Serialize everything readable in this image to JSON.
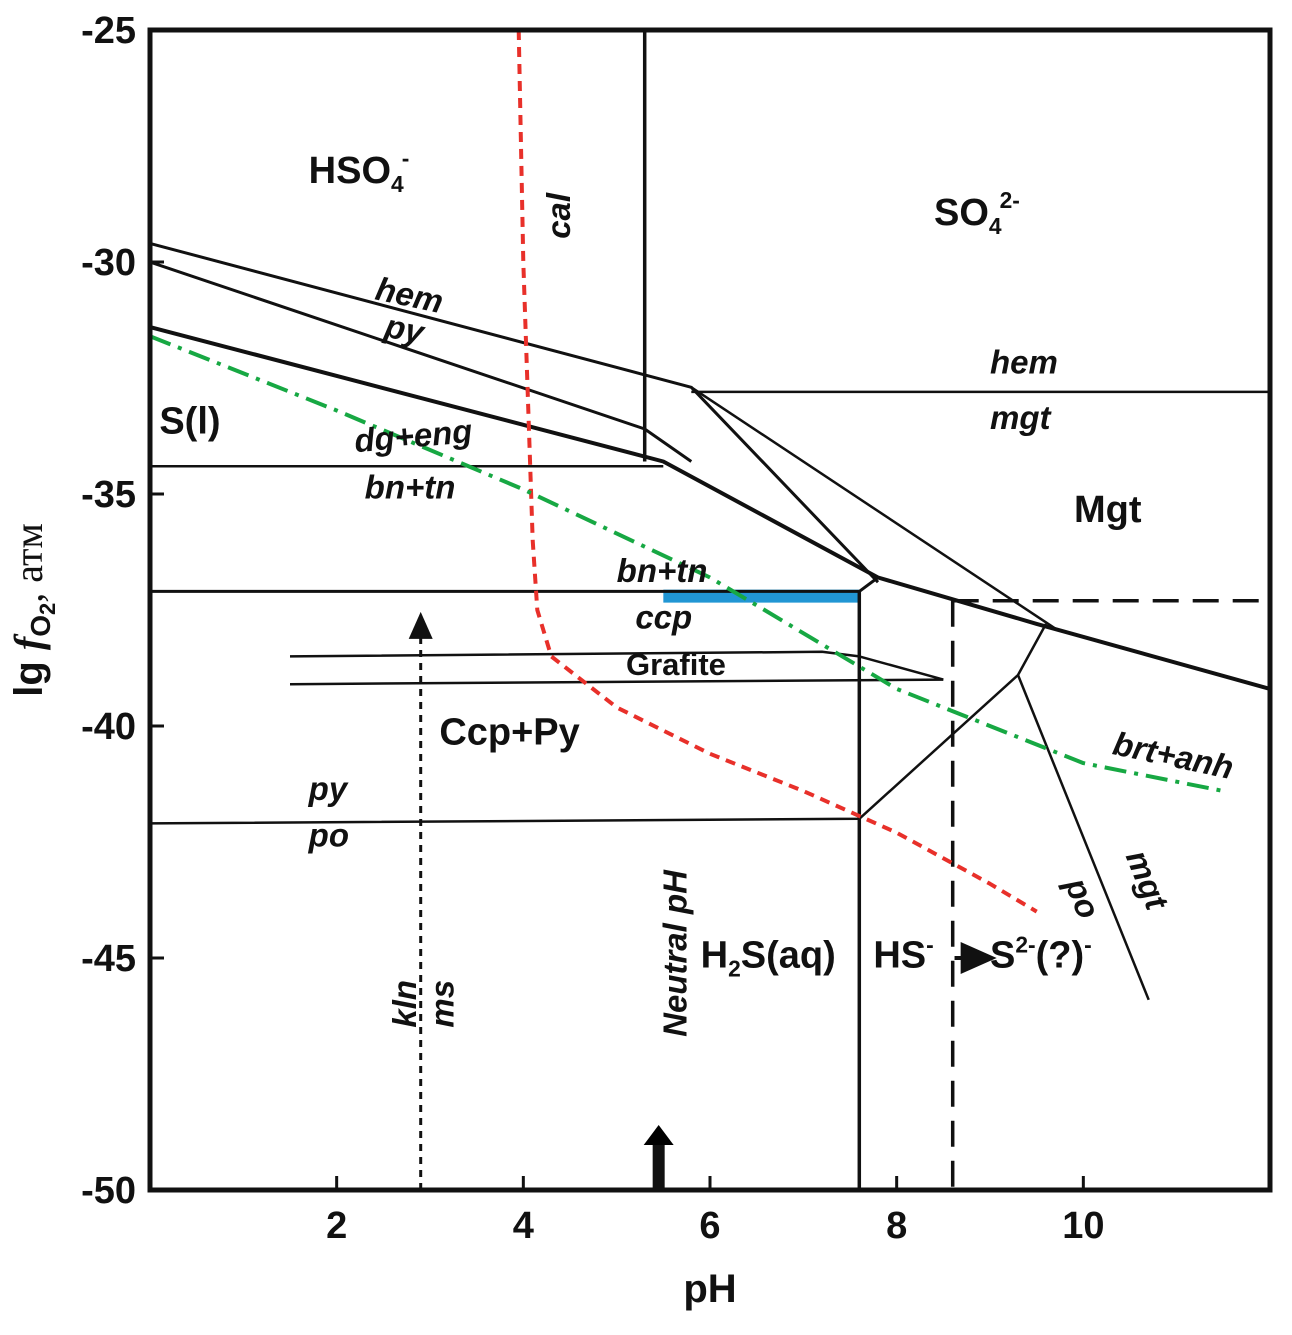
{
  "chart_data": {
    "type": "line",
    "title": "",
    "xlabel": "pH",
    "ylabel": "lg f_O2, atm",
    "ylabel_parts": [
      "lg ",
      "f",
      "O",
      "2",
      ", атм"
    ],
    "xlim": [
      0,
      12
    ],
    "ylim": [
      -50,
      -25
    ],
    "x_ticks": [
      {
        "value": 2,
        "label": "2"
      },
      {
        "value": 4,
        "label": "4"
      },
      {
        "value": 6,
        "label": "6"
      },
      {
        "value": 8,
        "label": "8"
      },
      {
        "value": 10,
        "label": "10"
      }
    ],
    "y_ticks": [
      {
        "value": -25,
        "label": "-25"
      },
      {
        "value": -30,
        "label": "-30"
      },
      {
        "value": -35,
        "label": "-35"
      },
      {
        "value": -40,
        "label": "-40"
      },
      {
        "value": -45,
        "label": "-45"
      },
      {
        "value": -50,
        "label": "-50"
      }
    ],
    "colors": {
      "axes": "#111111",
      "cal_line": "#e8302a",
      "brt_anh_line": "#17a843",
      "highlight": "#2196d4"
    },
    "lines": [
      {
        "id": "hem-py-upper",
        "style": "solid",
        "width": 3,
        "points": [
          [
            0,
            -29.6
          ],
          [
            5.8,
            -32.7
          ],
          [
            7.8,
            -36.9
          ]
        ]
      },
      {
        "id": "hem-py-lower",
        "style": "solid",
        "width": 3,
        "points": [
          [
            0,
            -30.0
          ],
          [
            5.3,
            -33.6
          ],
          [
            5.8,
            -34.3
          ]
        ]
      },
      {
        "id": "dg-eng",
        "style": "solid",
        "width": 4,
        "points": [
          [
            0,
            -31.4
          ],
          [
            5.5,
            -34.3
          ],
          [
            7.8,
            -36.8
          ],
          [
            9.5,
            -37.8
          ],
          [
            12,
            -39.2
          ]
        ]
      },
      {
        "id": "sulfate-boundary",
        "style": "solid",
        "width": 3.5,
        "points": [
          [
            5.3,
            -25
          ],
          [
            5.3,
            -34.3
          ]
        ]
      },
      {
        "id": "hem-mgt",
        "style": "solid",
        "width": 2.5,
        "points": [
          [
            5.8,
            -32.8
          ],
          [
            12,
            -32.8
          ]
        ]
      },
      {
        "id": "mgt-diagonal",
        "style": "solid",
        "width": 2.5,
        "points": [
          [
            5.8,
            -32.7
          ],
          [
            9.7,
            -37.9
          ]
        ]
      },
      {
        "id": "bn-tn-horizontal",
        "style": "solid",
        "width": 2.5,
        "points": [
          [
            0,
            -34.4
          ],
          [
            5.5,
            -34.4
          ]
        ]
      },
      {
        "id": "bn-tn-ccp",
        "style": "solid",
        "width": 3,
        "points": [
          [
            0,
            -37.1
          ],
          [
            7.6,
            -37.1
          ],
          [
            7.8,
            -36.8
          ]
        ]
      },
      {
        "id": "h2s-boundary",
        "style": "solid",
        "width": 3.5,
        "points": [
          [
            7.6,
            -37.1
          ],
          [
            7.6,
            -50
          ]
        ]
      },
      {
        "id": "grafite-upper",
        "style": "solid",
        "width": 2.5,
        "points": [
          [
            1.5,
            -38.5
          ],
          [
            7.2,
            -38.4
          ],
          [
            7.6,
            -38.5
          ],
          [
            8.5,
            -39.0
          ]
        ]
      },
      {
        "id": "grafite-lower",
        "style": "solid",
        "width": 2.5,
        "points": [
          [
            1.5,
            -39.1
          ],
          [
            8.5,
            -39.0
          ]
        ]
      },
      {
        "id": "py-po",
        "style": "solid",
        "width": 2.5,
        "points": [
          [
            0,
            -42.1
          ],
          [
            7.6,
            -42.0
          ],
          [
            9.3,
            -38.9
          ],
          [
            9.6,
            -37.8
          ]
        ]
      },
      {
        "id": "mgt-po",
        "style": "solid",
        "width": 2.5,
        "points": [
          [
            9.3,
            -38.9
          ],
          [
            10.7,
            -45.9
          ]
        ]
      },
      {
        "id": "hs-s2-dashed",
        "style": "dashed",
        "width": 3.5,
        "points": [
          [
            8.6,
            -37.3
          ],
          [
            8.6,
            -50
          ]
        ]
      },
      {
        "id": "mgt-dashed",
        "style": "dashed",
        "width": 3.5,
        "points": [
          [
            8.6,
            -37.3
          ],
          [
            12,
            -37.3
          ]
        ]
      },
      {
        "id": "kln-ms",
        "style": "dotted",
        "width": 3,
        "arrow": true,
        "points": [
          [
            2.9,
            -50
          ],
          [
            2.9,
            -37.8
          ]
        ]
      },
      {
        "id": "cal",
        "style": "red-dashed",
        "width": 4,
        "points": [
          [
            3.95,
            -25
          ],
          [
            4.0,
            -30
          ],
          [
            4.05,
            -33
          ],
          [
            4.1,
            -36
          ],
          [
            4.15,
            -37.5
          ],
          [
            4.3,
            -38.5
          ],
          [
            5.0,
            -39.6
          ],
          [
            6.0,
            -40.6
          ],
          [
            7.0,
            -41.4
          ],
          [
            8.0,
            -42.3
          ],
          [
            9.0,
            -43.4
          ],
          [
            9.5,
            -44.0
          ]
        ]
      },
      {
        "id": "brt-anh",
        "style": "green-dashdot",
        "width": 4,
        "points": [
          [
            0,
            -31.6
          ],
          [
            2,
            -33.2
          ],
          [
            4,
            -34.9
          ],
          [
            6,
            -36.8
          ],
          [
            8,
            -39.2
          ],
          [
            10,
            -40.8
          ],
          [
            11.5,
            -41.4
          ]
        ]
      }
    ],
    "highlight_segment": {
      "id": "bn-tn-ccp-highlight",
      "x": [
        5.5,
        7.6
      ],
      "y": -37.2
    },
    "neutral_ph_arrow": {
      "x": 5.45,
      "y_from": -50,
      "y_to": -48.6
    },
    "annotations": [
      {
        "id": "hso4",
        "text": "HSO",
        "sub": "4",
        "sup": "-",
        "x": 1.7,
        "y": -28.3,
        "cls": "field"
      },
      {
        "id": "so4",
        "text": "SO",
        "sub": "4",
        "sup": "2-",
        "x": 8.4,
        "y": -29.2,
        "cls": "field"
      },
      {
        "id": "cal-label",
        "text": "cal",
        "x": 4.5,
        "y": -29.5,
        "cls": "bnd",
        "rotate": -90
      },
      {
        "id": "hem-label-1",
        "text": "hem",
        "x": 2.4,
        "y": -30.8,
        "cls": "bnd",
        "rotate": 12
      },
      {
        "id": "py-label-1",
        "text": "py",
        "x": 2.5,
        "y": -31.6,
        "cls": "bnd",
        "rotate": 12
      },
      {
        "id": "hem-label-2",
        "text": "hem",
        "x": 9.0,
        "y": -32.4,
        "cls": "bnd"
      },
      {
        "id": "mgt-label-1",
        "text": "mgt",
        "x": 9.0,
        "y": -33.6,
        "cls": "bnd"
      },
      {
        "id": "s-l",
        "text": "S(l)",
        "x": 0.1,
        "y": -33.7,
        "cls": "field"
      },
      {
        "id": "dg-eng-label",
        "text": "dg+eng",
        "x": 2.2,
        "y": -34.1,
        "cls": "bnd",
        "rotate": -5
      },
      {
        "id": "bn-tn-label-1",
        "text": "bn+tn",
        "x": 2.3,
        "y": -35.1,
        "cls": "bnd"
      },
      {
        "id": "mgt-field",
        "text": "Mgt",
        "x": 9.9,
        "y": -35.6,
        "cls": "field"
      },
      {
        "id": "bn-tn-label-2",
        "text": "bn+tn",
        "x": 5.0,
        "y": -36.9,
        "cls": "bnd"
      },
      {
        "id": "ccp-label",
        "text": "ccp",
        "x": 5.2,
        "y": -37.9,
        "cls": "bnd"
      },
      {
        "id": "grafite-label",
        "text": "Grafite",
        "x": 5.1,
        "y": -38.9,
        "cls": "grafite"
      },
      {
        "id": "ccp-py",
        "text": "Ccp+Py",
        "x": 3.1,
        "y": -40.4,
        "cls": "field"
      },
      {
        "id": "brt-anh-label",
        "text": "brt+anh",
        "x": 10.3,
        "y": -40.6,
        "cls": "bnd",
        "rotate": 12
      },
      {
        "id": "py-label-2",
        "text": "py",
        "x": 1.7,
        "y": -41.6,
        "cls": "bnd"
      },
      {
        "id": "po-label-1",
        "text": "po",
        "x": 1.7,
        "y": -42.6,
        "cls": "bnd"
      },
      {
        "id": "mgt-label-2",
        "text": "mgt",
        "x": 10.45,
        "y": -42.8,
        "cls": "bnd",
        "rotate": 68
      },
      {
        "id": "po-label-2",
        "text": "po",
        "x": 9.8,
        "y": -43.4,
        "cls": "bnd",
        "rotate": 68
      },
      {
        "id": "h2s",
        "text": "H",
        "sub": "2",
        "after": "S(aq)",
        "x": 5.9,
        "y": -45.2,
        "cls": "field"
      },
      {
        "id": "hs",
        "text": "HS",
        "sup": "-",
        "x": 7.75,
        "y": -45.2,
        "cls": "field"
      },
      {
        "id": "s2",
        "text": "S",
        "sup": "2-",
        "after": "(?)",
        "sup2": "-",
        "x": 9.0,
        "y": -45.2,
        "cls": "field"
      },
      {
        "id": "kln-label",
        "text": "kln",
        "x": 2.85,
        "y": -46.5,
        "cls": "bnd",
        "rotate": -90
      },
      {
        "id": "ms-label",
        "text": "ms",
        "x": 3.25,
        "y": -46.5,
        "cls": "bnd",
        "rotate": -90
      },
      {
        "id": "neutral-ph",
        "text": "Neutral pH",
        "x": 5.75,
        "y": -46.7,
        "cls": "bnd",
        "rotate": -90
      }
    ]
  }
}
